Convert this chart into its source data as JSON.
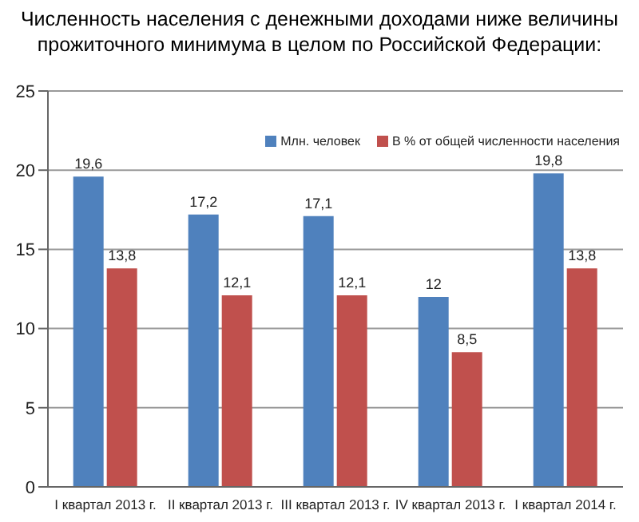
{
  "chart_data": {
    "type": "bar",
    "title": "Численность населения с денежными доходами ниже величины\nпрожиточного минимума в целом по Российской Федерации:",
    "categories": [
      "I квартал 2013 г.",
      "II квартал 2013 г.",
      "III квартал 2013 г.",
      "IV квартал 2013 г.",
      "I квартал 2014 г."
    ],
    "series": [
      {
        "name": "Млн. человек",
        "color": "#4f81bd",
        "values": [
          19.6,
          17.2,
          17.1,
          12,
          19.8
        ],
        "value_labels": [
          "19,6",
          "17,2",
          "17,1",
          "12",
          "19,8"
        ]
      },
      {
        "name": "В % от общей численности населения",
        "color": "#c0504d",
        "values": [
          13.8,
          12.1,
          12.1,
          8.5,
          13.8
        ],
        "value_labels": [
          "13,8",
          "12,1",
          "12,1",
          "8,5",
          "13,8"
        ]
      }
    ],
    "ylim": [
      0,
      25
    ],
    "yticks": [
      0,
      5,
      10,
      15,
      20,
      25
    ],
    "grid": "y",
    "legend": "top right"
  }
}
